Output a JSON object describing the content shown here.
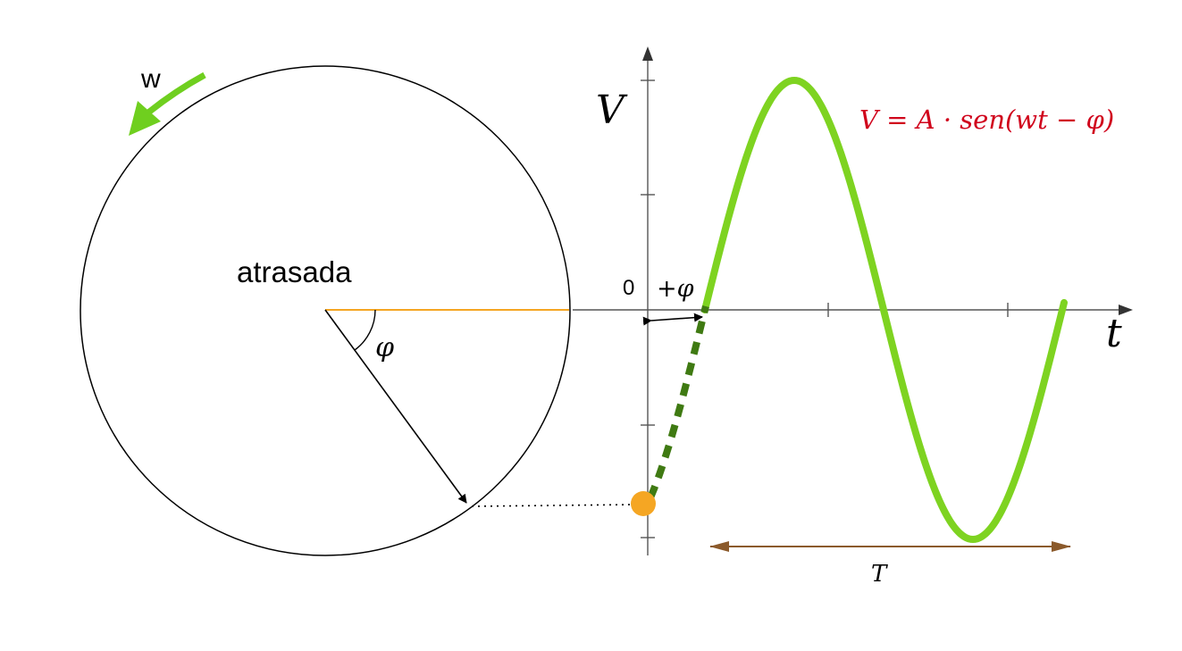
{
  "labels": {
    "omega": "w",
    "state": "atrasada",
    "phi": "φ",
    "origin": "0",
    "phase_shift": "+φ",
    "v_axis": "V",
    "t_axis": "t",
    "period": "T",
    "formula": "V = A · sen(wt − φ)"
  },
  "colors": {
    "wave": "#7ed321",
    "wave_dark": "#3f7a12",
    "arrow_w": "#6fcf1f",
    "reference": "#f5a623",
    "point": "#f5a623",
    "formula": "#d0021b",
    "period": "#8b5a2b",
    "stroke": "#000000"
  },
  "icons": {
    "rotation": "curved-arrow-icon"
  }
}
